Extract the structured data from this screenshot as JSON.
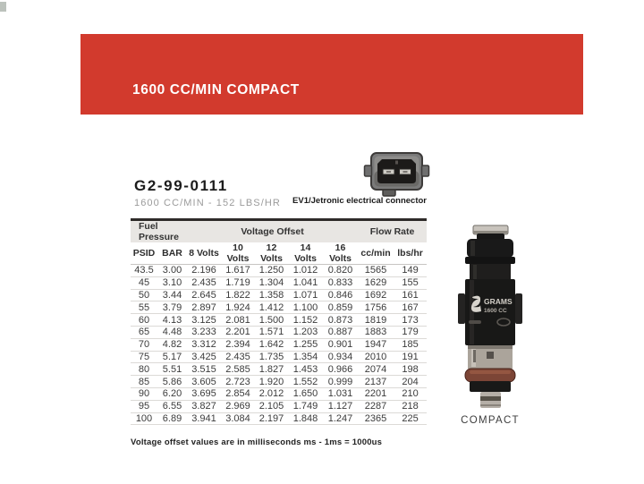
{
  "banner": {
    "title": "1600 CC/MIN COMPACT",
    "bg_color": "#d23a2d"
  },
  "product": {
    "part_number": "G2-99-0111",
    "subtitle": "1600 CC/MIN - 152 LBS/HR",
    "connector_label": "EV1/Jetronic electrical connector",
    "injector_caption": "COMPACT",
    "injector_brand": "GRAMS",
    "injector_size": "1600 CC"
  },
  "table": {
    "group_headers": [
      {
        "label": "Fuel Pressure",
        "colspan": "2"
      },
      {
        "label": "Voltage Offset",
        "colspan": "5"
      },
      {
        "label": "Flow Rate",
        "colspan": "2"
      }
    ],
    "columns": [
      "PSID",
      "BAR",
      "8 Volts",
      "10 Volts",
      "12 Volts",
      "14 Volts",
      "16 Volts",
      "cc/min",
      "lbs/hr"
    ],
    "rows": [
      [
        "43.5",
        "3.00",
        "2.196",
        "1.617",
        "1.250",
        "1.012",
        "0.820",
        "1565",
        "149"
      ],
      [
        "45",
        "3.10",
        "2.435",
        "1.719",
        "1.304",
        "1.041",
        "0.833",
        "1629",
        "155"
      ],
      [
        "50",
        "3.44",
        "2.645",
        "1.822",
        "1.358",
        "1.071",
        "0.846",
        "1692",
        "161"
      ],
      [
        "55",
        "3.79",
        "2.897",
        "1.924",
        "1.412",
        "1.100",
        "0.859",
        "1756",
        "167"
      ],
      [
        "60",
        "4.13",
        "3.125",
        "2.081",
        "1.500",
        "1.152",
        "0.873",
        "1819",
        "173"
      ],
      [
        "65",
        "4.48",
        "3.233",
        "2.201",
        "1.571",
        "1.203",
        "0.887",
        "1883",
        "179"
      ],
      [
        "70",
        "4.82",
        "3.312",
        "2.394",
        "1.642",
        "1.255",
        "0.901",
        "1947",
        "185"
      ],
      [
        "75",
        "5.17",
        "3.425",
        "2.435",
        "1.735",
        "1.354",
        "0.934",
        "2010",
        "191"
      ],
      [
        "80",
        "5.51",
        "3.515",
        "2.585",
        "1.827",
        "1.453",
        "0.966",
        "2074",
        "198"
      ],
      [
        "85",
        "5.86",
        "3.605",
        "2.723",
        "1.920",
        "1.552",
        "0.999",
        "2137",
        "204"
      ],
      [
        "90",
        "6.20",
        "3.695",
        "2.854",
        "2.012",
        "1.650",
        "1.031",
        "2201",
        "210"
      ],
      [
        "95",
        "6.55",
        "3.827",
        "2.969",
        "2.105",
        "1.749",
        "1.127",
        "2287",
        "218"
      ],
      [
        "100",
        "6.89",
        "3.941",
        "3.084",
        "2.197",
        "1.848",
        "1.247",
        "2365",
        "225"
      ]
    ]
  },
  "footnote": "Voltage offset values are in milliseconds ms - 1ms = 1000us"
}
